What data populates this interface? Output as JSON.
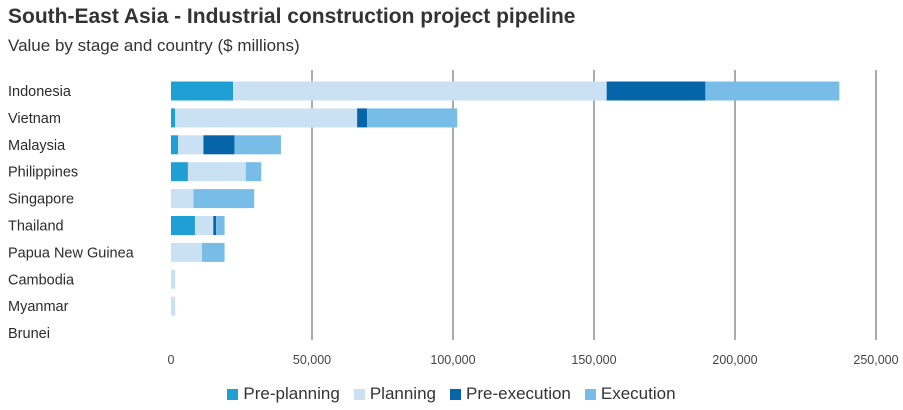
{
  "header": {
    "title": "South-East Asia - Industrial construction project pipeline",
    "subtitle": "Value by stage and country ($ millions)"
  },
  "colors": {
    "pre_planning": "#1ea0d4",
    "planning": "#c9e1f3",
    "pre_execution": "#0664a8",
    "execution": "#78bde8",
    "grid": "#555555"
  },
  "chart_data": {
    "type": "bar",
    "orientation": "horizontal",
    "stacked": true,
    "categories": [
      "Indonesia",
      "Vietnam",
      "Malaysia",
      "Philippines",
      "Singapore",
      "Thailand",
      "Papua New Guinea",
      "Cambodia",
      "Myanmar",
      "Brunei"
    ],
    "series": [
      {
        "name": "Pre-planning",
        "values": [
          22000,
          1500,
          2500,
          6000,
          0,
          8500,
          0,
          0,
          0,
          0
        ]
      },
      {
        "name": "Planning",
        "values": [
          132500,
          64500,
          9000,
          20500,
          8000,
          6500,
          11000,
          1500,
          1500,
          0
        ]
      },
      {
        "name": "Pre-execution",
        "values": [
          35000,
          3500,
          11000,
          0,
          0,
          1000,
          0,
          0,
          0,
          0
        ]
      },
      {
        "name": "Execution",
        "values": [
          47500,
          32000,
          16500,
          5500,
          21500,
          3000,
          8000,
          0,
          0,
          0
        ]
      }
    ],
    "xlim": [
      0,
      250000
    ],
    "xticks": [
      "0",
      "50,000",
      "100,000",
      "150,000",
      "200,000",
      "250,000"
    ],
    "xtick_values": [
      0,
      50000,
      100000,
      150000,
      200000,
      250000
    ],
    "grid": "vertical",
    "legend_position": "bottom-center"
  }
}
